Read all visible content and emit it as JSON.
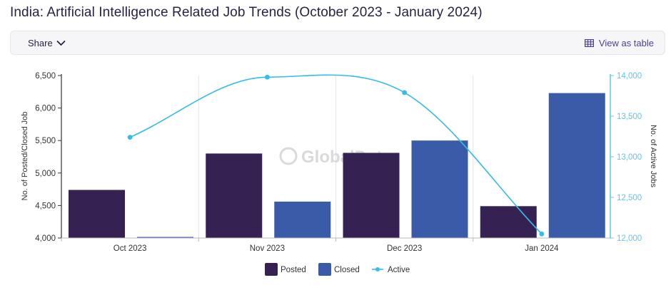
{
  "title": "India: Artificial Intelligence Related Job Trends (October 2023 - January 2024)",
  "toolbar": {
    "share_label": "Share",
    "view_table_label": "View as table"
  },
  "watermark": "GlobalData",
  "colors": {
    "posted": "#352252",
    "closed": "#3a5ba7",
    "active": "#33bde9",
    "right_axis": "#5bc8ef"
  },
  "chart_data": {
    "type": "bar",
    "categories": [
      "Oct 2023",
      "Nov 2023",
      "Dec 2023",
      "Jan 2024"
    ],
    "series": [
      {
        "name": "Posted",
        "type": "bar",
        "axis": "left",
        "values": [
          4740,
          5300,
          5310,
          4490
        ]
      },
      {
        "name": "Closed",
        "type": "bar",
        "axis": "left",
        "values": [
          4010,
          4560,
          5500,
          6230
        ]
      },
      {
        "name": "Active",
        "type": "line",
        "axis": "right",
        "values": [
          13240,
          13980,
          13790,
          12050
        ]
      }
    ],
    "ylabel": "No. of Posted/Closed Job",
    "ylim": [
      4000,
      6500
    ],
    "yticks": [
      "4,000",
      "4,500",
      "5,000",
      "5,500",
      "6,000",
      "6,500"
    ],
    "y2label": "No. of Active Jobs",
    "y2lim": [
      12000,
      14000
    ],
    "y2ticks": [
      "12,000",
      "12,500",
      "13,000",
      "13,500",
      "14,000"
    ],
    "legend": "bottom",
    "grid": "vertical"
  }
}
